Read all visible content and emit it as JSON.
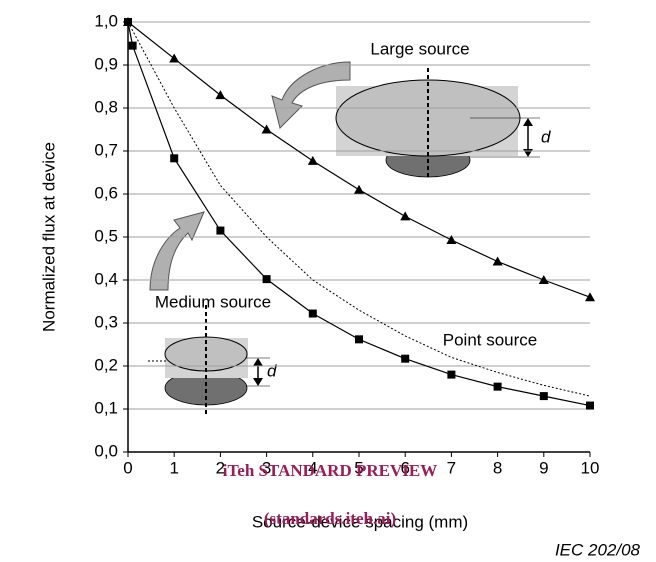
{
  "chart_data": {
    "type": "line",
    "xlabel": "Source-device spacing  (mm)",
    "ylabel": "Normalized flux at device",
    "xlim": [
      0,
      10
    ],
    "ylim": [
      0,
      1.0
    ],
    "xticks": [
      0,
      1,
      2,
      3,
      4,
      5,
      6,
      7,
      8,
      9,
      10
    ],
    "yticks": [
      {
        "value": 0,
        "label": "0,0"
      },
      {
        "value": 0.1,
        "label": "0,1"
      },
      {
        "value": 0.2,
        "label": "0,2"
      },
      {
        "value": 0.3,
        "label": "0,3"
      },
      {
        "value": 0.4,
        "label": "0,4"
      },
      {
        "value": 0.5,
        "label": "0,5"
      },
      {
        "value": 0.6,
        "label": "0,6"
      },
      {
        "value": 0.7,
        "label": "0,7"
      },
      {
        "value": 0.8,
        "label": "0,8"
      },
      {
        "value": 0.9,
        "label": "0,9"
      },
      {
        "value": 1.0,
        "label": "1,0"
      }
    ],
    "grid": true,
    "series": [
      {
        "name": "Large source",
        "color": "#000000",
        "marker": "triangle",
        "dash": "solid",
        "x": [
          0,
          1,
          2,
          3,
          4,
          5,
          6,
          7,
          8,
          9,
          10
        ],
        "values": [
          1.0,
          0.915,
          0.83,
          0.75,
          0.677,
          0.61,
          0.548,
          0.493,
          0.443,
          0.4,
          0.36
        ]
      },
      {
        "name": "Medium source",
        "color": "#000000",
        "marker": "square",
        "dash": "solid",
        "x": [
          0,
          0.1,
          1,
          2,
          3,
          4,
          5,
          6,
          7,
          8,
          9,
          10
        ],
        "values": [
          1.0,
          0.945,
          0.683,
          0.515,
          0.402,
          0.322,
          0.262,
          0.217,
          0.18,
          0.152,
          0.13,
          0.108
        ]
      },
      {
        "name": "Point source",
        "color": "#000000",
        "marker": "none",
        "dash": "dotted",
        "x": [
          0,
          1,
          2,
          3,
          4,
          5,
          6,
          7,
          8,
          9,
          10
        ],
        "values": [
          1.0,
          0.8,
          0.62,
          0.5,
          0.4,
          0.33,
          0.27,
          0.22,
          0.185,
          0.155,
          0.13
        ]
      }
    ],
    "annotations": [
      "d",
      "d"
    ],
    "source_note": "IEC  202/08"
  },
  "watermark": [
    "iTeh STANDARD PREVIEW",
    "(standards.iteh.ai)"
  ]
}
